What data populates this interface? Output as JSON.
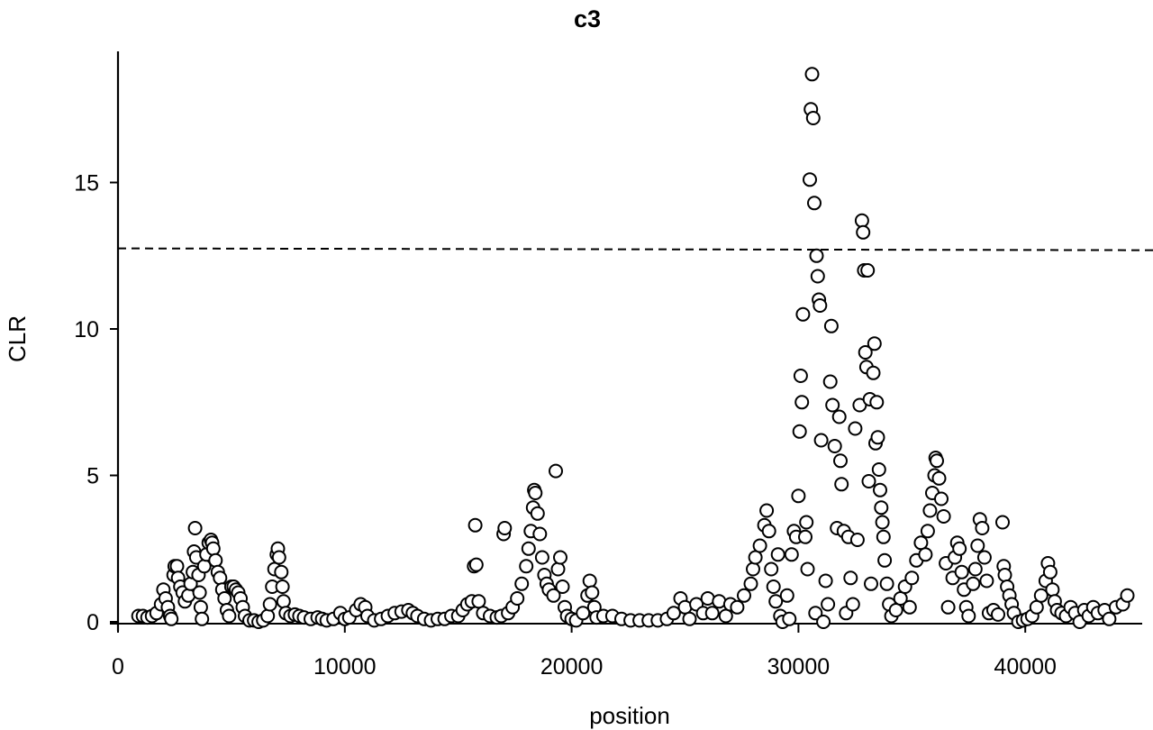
{
  "chart_data": {
    "type": "scatter",
    "title": "c3",
    "xlabel": "position",
    "ylabel": "CLR",
    "xlim": [
      0,
      45000
    ],
    "ylim": [
      0,
      19
    ],
    "xticks": [
      0,
      10000,
      20000,
      30000,
      40000
    ],
    "yticks": [
      0,
      5,
      10,
      15
    ],
    "grid": false,
    "legend": null,
    "threshold_line": {
      "y": 12.75,
      "style": "dashed"
    },
    "marker": {
      "shape": "open-circle",
      "fill": "#ffffff",
      "stroke": "#000000"
    },
    "series": [
      {
        "name": "CLR",
        "points": [
          [
            900,
            0.2
          ],
          [
            1100,
            0.2
          ],
          [
            1300,
            0.15
          ],
          [
            1500,
            0.2
          ],
          [
            1700,
            0.3
          ],
          [
            1900,
            0.6
          ],
          [
            2000,
            1.1
          ],
          [
            2100,
            0.8
          ],
          [
            2200,
            0.5
          ],
          [
            2300,
            0.2
          ],
          [
            2350,
            0.1
          ],
          [
            2450,
            1.6
          ],
          [
            2500,
            1.9
          ],
          [
            2600,
            1.9
          ],
          [
            2650,
            1.5
          ],
          [
            2750,
            1.2
          ],
          [
            2850,
            1.0
          ],
          [
            2950,
            0.7
          ],
          [
            3100,
            0.9
          ],
          [
            3200,
            1.3
          ],
          [
            3300,
            1.7
          ],
          [
            3350,
            2.4
          ],
          [
            3400,
            3.2
          ],
          [
            3450,
            2.2
          ],
          [
            3550,
            1.6
          ],
          [
            3600,
            1.0
          ],
          [
            3650,
            0.5
          ],
          [
            3700,
            0.1
          ],
          [
            3800,
            1.9
          ],
          [
            3900,
            2.3
          ],
          [
            4000,
            2.7
          ],
          [
            4100,
            2.8
          ],
          [
            4150,
            2.7
          ],
          [
            4200,
            2.5
          ],
          [
            4300,
            2.1
          ],
          [
            4400,
            1.7
          ],
          [
            4500,
            1.5
          ],
          [
            4600,
            1.1
          ],
          [
            4700,
            0.8
          ],
          [
            4800,
            0.4
          ],
          [
            4900,
            0.2
          ],
          [
            5000,
            1.2
          ],
          [
            5100,
            1.2
          ],
          [
            5200,
            1.1
          ],
          [
            5300,
            1.0
          ],
          [
            5400,
            0.8
          ],
          [
            5500,
            0.5
          ],
          [
            5600,
            0.2
          ],
          [
            5800,
            0.05
          ],
          [
            6000,
            0.05
          ],
          [
            6200,
            0.0
          ],
          [
            6400,
            0.05
          ],
          [
            6600,
            0.2
          ],
          [
            6700,
            0.6
          ],
          [
            6800,
            1.2
          ],
          [
            6900,
            1.8
          ],
          [
            7000,
            2.3
          ],
          [
            7050,
            2.5
          ],
          [
            7100,
            2.2
          ],
          [
            7200,
            1.7
          ],
          [
            7250,
            1.2
          ],
          [
            7300,
            0.7
          ],
          [
            7400,
            0.3
          ],
          [
            7600,
            0.2
          ],
          [
            7800,
            0.25
          ],
          [
            8000,
            0.2
          ],
          [
            8200,
            0.15
          ],
          [
            8500,
            0.1
          ],
          [
            8800,
            0.15
          ],
          [
            9000,
            0.1
          ],
          [
            9200,
            0.05
          ],
          [
            9500,
            0.1
          ],
          [
            9800,
            0.3
          ],
          [
            10000,
            0.1
          ],
          [
            10200,
            0.15
          ],
          [
            10500,
            0.4
          ],
          [
            10700,
            0.6
          ],
          [
            10900,
            0.5
          ],
          [
            11000,
            0.2
          ],
          [
            11300,
            0.05
          ],
          [
            11600,
            0.1
          ],
          [
            11900,
            0.2
          ],
          [
            12200,
            0.3
          ],
          [
            12500,
            0.35
          ],
          [
            12800,
            0.4
          ],
          [
            13000,
            0.3
          ],
          [
            13200,
            0.2
          ],
          [
            13500,
            0.1
          ],
          [
            13800,
            0.05
          ],
          [
            14100,
            0.1
          ],
          [
            14400,
            0.1
          ],
          [
            14700,
            0.2
          ],
          [
            15000,
            0.2
          ],
          [
            15200,
            0.4
          ],
          [
            15400,
            0.6
          ],
          [
            15600,
            0.7
          ],
          [
            15700,
            1.9
          ],
          [
            15750,
            3.3
          ],
          [
            15800,
            1.95
          ],
          [
            15900,
            0.7
          ],
          [
            16100,
            0.3
          ],
          [
            16400,
            0.2
          ],
          [
            16700,
            0.15
          ],
          [
            16900,
            0.2
          ],
          [
            17000,
            3.0
          ],
          [
            17050,
            3.2
          ],
          [
            17200,
            0.3
          ],
          [
            17400,
            0.5
          ],
          [
            17600,
            0.8
          ],
          [
            17800,
            1.3
          ],
          [
            18000,
            1.9
          ],
          [
            18100,
            2.5
          ],
          [
            18200,
            3.1
          ],
          [
            18300,
            3.9
          ],
          [
            18350,
            4.5
          ],
          [
            18400,
            4.4
          ],
          [
            18500,
            3.7
          ],
          [
            18600,
            3.0
          ],
          [
            18700,
            2.2
          ],
          [
            18800,
            1.6
          ],
          [
            18900,
            1.3
          ],
          [
            19000,
            1.1
          ],
          [
            19200,
            0.9
          ],
          [
            19300,
            5.15
          ],
          [
            19400,
            1.8
          ],
          [
            19500,
            2.2
          ],
          [
            19600,
            1.2
          ],
          [
            19700,
            0.5
          ],
          [
            19800,
            0.2
          ],
          [
            20000,
            0.1
          ],
          [
            20200,
            0.05
          ],
          [
            20500,
            0.3
          ],
          [
            20700,
            0.9
          ],
          [
            20800,
            1.4
          ],
          [
            20900,
            1.0
          ],
          [
            21000,
            0.5
          ],
          [
            21100,
            0.15
          ],
          [
            21400,
            0.2
          ],
          [
            21800,
            0.2
          ],
          [
            22200,
            0.1
          ],
          [
            22600,
            0.05
          ],
          [
            23000,
            0.05
          ],
          [
            23400,
            0.05
          ],
          [
            23800,
            0.05
          ],
          [
            24200,
            0.1
          ],
          [
            24500,
            0.3
          ],
          [
            24800,
            0.8
          ],
          [
            25000,
            0.5
          ],
          [
            25200,
            0.1
          ],
          [
            25500,
            0.6
          ],
          [
            25800,
            0.3
          ],
          [
            26000,
            0.8
          ],
          [
            26200,
            0.3
          ],
          [
            26500,
            0.7
          ],
          [
            26800,
            0.2
          ],
          [
            27000,
            0.6
          ],
          [
            27300,
            0.5
          ],
          [
            27600,
            0.9
          ],
          [
            27900,
            1.3
          ],
          [
            28000,
            1.8
          ],
          [
            28100,
            2.2
          ],
          [
            28300,
            2.6
          ],
          [
            28500,
            3.3
          ],
          [
            28600,
            3.8
          ],
          [
            28700,
            3.1
          ],
          [
            28800,
            1.8
          ],
          [
            28900,
            1.2
          ],
          [
            29000,
            0.7
          ],
          [
            29100,
            2.3
          ],
          [
            29200,
            0.2
          ],
          [
            29300,
            0.0
          ],
          [
            29500,
            0.9
          ],
          [
            29600,
            0.1
          ],
          [
            29700,
            2.3
          ],
          [
            29800,
            3.1
          ],
          [
            29900,
            2.9
          ],
          [
            30000,
            4.3
          ],
          [
            30050,
            6.5
          ],
          [
            30100,
            8.4
          ],
          [
            30150,
            7.5
          ],
          [
            30200,
            10.5
          ],
          [
            30300,
            2.9
          ],
          [
            30350,
            3.4
          ],
          [
            30400,
            1.8
          ],
          [
            30500,
            15.1
          ],
          [
            30550,
            17.5
          ],
          [
            30600,
            18.7
          ],
          [
            30650,
            17.2
          ],
          [
            30700,
            14.3
          ],
          [
            30750,
            0.3
          ],
          [
            30800,
            12.5
          ],
          [
            30850,
            11.8
          ],
          [
            30900,
            11.0
          ],
          [
            30950,
            10.8
          ],
          [
            31000,
            6.2
          ],
          [
            31100,
            0.0
          ],
          [
            31200,
            1.4
          ],
          [
            31300,
            0.6
          ],
          [
            31400,
            8.2
          ],
          [
            31450,
            10.1
          ],
          [
            31500,
            7.4
          ],
          [
            31600,
            6.0
          ],
          [
            31700,
            3.2
          ],
          [
            31800,
            7.0
          ],
          [
            31850,
            5.5
          ],
          [
            31900,
            4.7
          ],
          [
            32000,
            3.1
          ],
          [
            32100,
            0.3
          ],
          [
            32200,
            2.9
          ],
          [
            32300,
            1.5
          ],
          [
            32400,
            0.6
          ],
          [
            32500,
            6.6
          ],
          [
            32600,
            2.8
          ],
          [
            32700,
            7.4
          ],
          [
            32800,
            13.7
          ],
          [
            32850,
            13.3
          ],
          [
            32900,
            12.0
          ],
          [
            32950,
            9.2
          ],
          [
            33000,
            8.7
          ],
          [
            33050,
            12.0
          ],
          [
            33100,
            4.8
          ],
          [
            33150,
            7.6
          ],
          [
            33200,
            1.3
          ],
          [
            33300,
            8.5
          ],
          [
            33350,
            9.5
          ],
          [
            33400,
            6.1
          ],
          [
            33450,
            7.5
          ],
          [
            33500,
            6.3
          ],
          [
            33550,
            5.2
          ],
          [
            33600,
            4.5
          ],
          [
            33650,
            3.9
          ],
          [
            33700,
            3.4
          ],
          [
            33750,
            2.9
          ],
          [
            33800,
            2.1
          ],
          [
            33900,
            1.3
          ],
          [
            34000,
            0.6
          ],
          [
            34100,
            0.2
          ],
          [
            34300,
            0.4
          ],
          [
            34500,
            0.8
          ],
          [
            34700,
            1.2
          ],
          [
            34900,
            0.5
          ],
          [
            35000,
            1.5
          ],
          [
            35200,
            2.1
          ],
          [
            35400,
            2.7
          ],
          [
            35600,
            2.3
          ],
          [
            35700,
            3.1
          ],
          [
            35800,
            3.8
          ],
          [
            35900,
            4.4
          ],
          [
            36000,
            5.0
          ],
          [
            36050,
            5.6
          ],
          [
            36100,
            5.5
          ],
          [
            36200,
            4.9
          ],
          [
            36300,
            4.2
          ],
          [
            36400,
            3.6
          ],
          [
            36500,
            2.0
          ],
          [
            36600,
            0.5
          ],
          [
            36800,
            1.5
          ],
          [
            36900,
            2.2
          ],
          [
            37000,
            2.7
          ],
          [
            37100,
            2.5
          ],
          [
            37200,
            1.7
          ],
          [
            37300,
            1.1
          ],
          [
            37400,
            0.5
          ],
          [
            37500,
            0.2
          ],
          [
            37700,
            1.3
          ],
          [
            37800,
            1.8
          ],
          [
            37900,
            2.6
          ],
          [
            38000,
            3.5
          ],
          [
            38100,
            3.2
          ],
          [
            38200,
            2.2
          ],
          [
            38300,
            1.4
          ],
          [
            38400,
            0.3
          ],
          [
            38600,
            0.4
          ],
          [
            38800,
            0.25
          ],
          [
            39000,
            3.4
          ],
          [
            39050,
            1.9
          ],
          [
            39100,
            1.6
          ],
          [
            39200,
            1.2
          ],
          [
            39300,
            0.9
          ],
          [
            39400,
            0.6
          ],
          [
            39500,
            0.3
          ],
          [
            39700,
            0.0
          ],
          [
            39900,
            0.05
          ],
          [
            40100,
            0.1
          ],
          [
            40300,
            0.2
          ],
          [
            40500,
            0.5
          ],
          [
            40700,
            0.9
          ],
          [
            40900,
            1.4
          ],
          [
            41000,
            2.0
          ],
          [
            41100,
            1.7
          ],
          [
            41200,
            1.1
          ],
          [
            41300,
            0.7
          ],
          [
            41400,
            0.4
          ],
          [
            41600,
            0.3
          ],
          [
            41800,
            0.2
          ],
          [
            42000,
            0.5
          ],
          [
            42200,
            0.3
          ],
          [
            42400,
            0.0
          ],
          [
            42600,
            0.4
          ],
          [
            42800,
            0.2
          ],
          [
            43000,
            0.5
          ],
          [
            43200,
            0.3
          ],
          [
            43500,
            0.4
          ],
          [
            43700,
            0.1
          ],
          [
            44000,
            0.5
          ],
          [
            44300,
            0.6
          ],
          [
            44500,
            0.9
          ]
        ]
      }
    ]
  }
}
